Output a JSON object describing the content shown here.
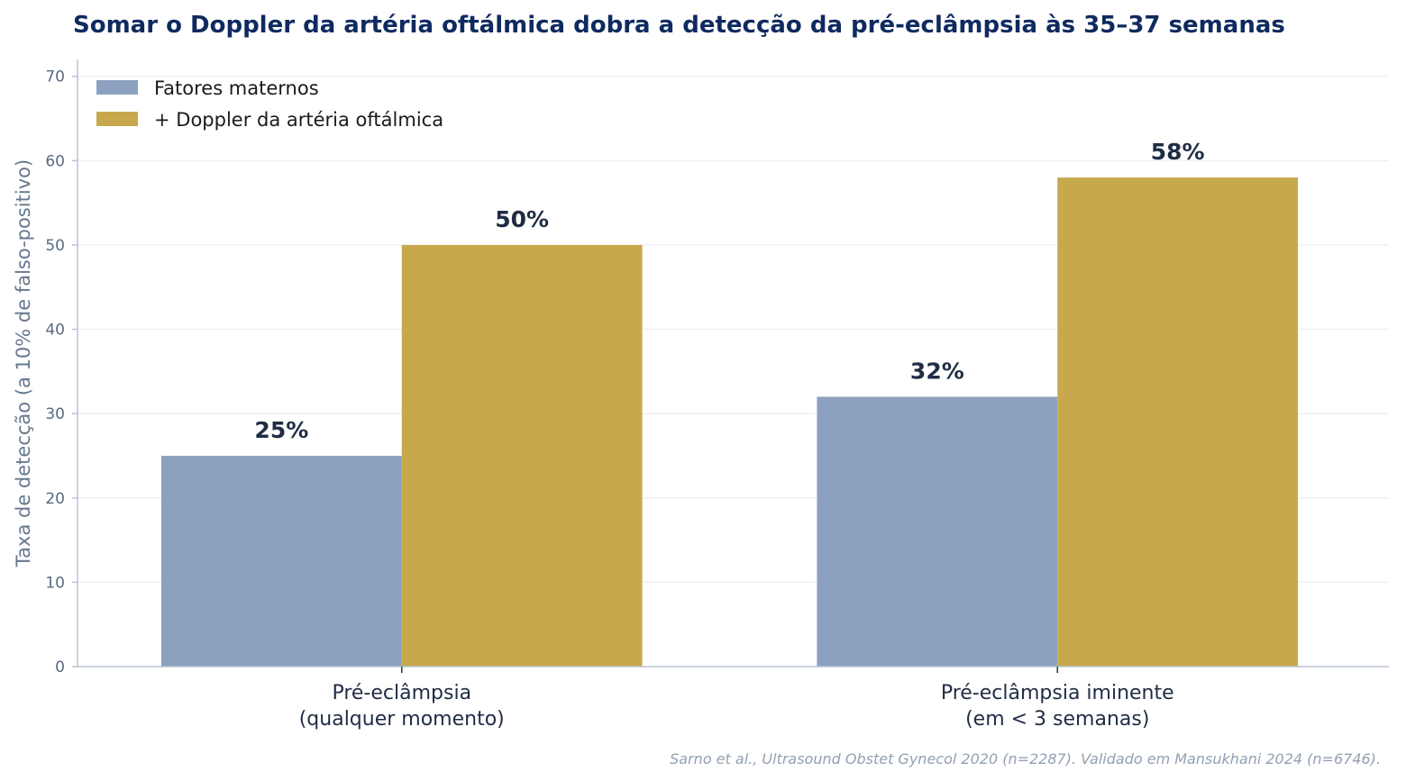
{
  "chart_data": {
    "type": "bar",
    "title": "Somar o Doppler da artéria oftálmica dobra a detecção da pré-eclâmpsia às 35–37 semanas",
    "ylabel": "Taxa de detecção (a 10% de falso-positivo)",
    "xlabel": "",
    "ylim": [
      0,
      72
    ],
    "yticks": [
      0,
      10,
      20,
      30,
      40,
      50,
      60,
      70
    ],
    "grid": "horizontal",
    "legend_position": "top-left",
    "categories": [
      [
        "Pré-eclâmpsia",
        "(qualquer momento)"
      ],
      [
        "Pré-eclâmpsia iminente",
        "(em < 3 semanas)"
      ]
    ],
    "series": [
      {
        "name": "Fatores maternos",
        "values": [
          25,
          32
        ],
        "labels": [
          "25%",
          "32%"
        ],
        "color": "#8ba1bf"
      },
      {
        "name": "+ Doppler da artéria oftálmica",
        "values": [
          50,
          58
        ],
        "labels": [
          "50%",
          "58%"
        ],
        "color": "#c8a84d"
      }
    ],
    "source_note": "Sarno et al., Ultrasound Obstet Gynecol 2020 (n=2287). Validado em Mansukhani 2024 (n=6746)."
  }
}
